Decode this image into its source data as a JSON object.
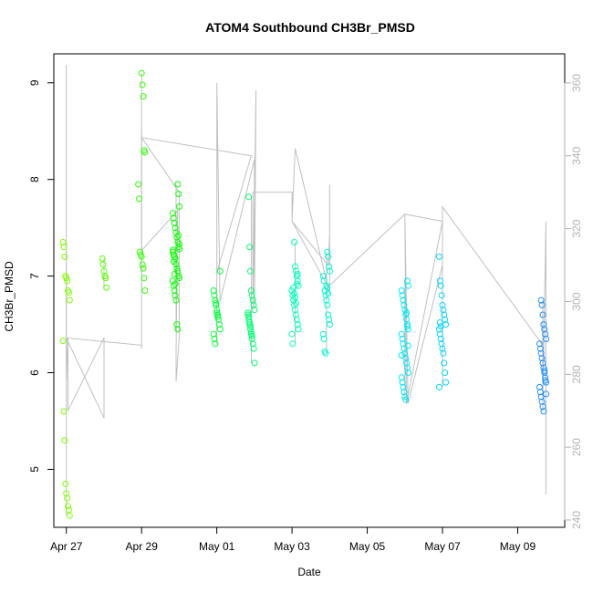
{
  "chart_data": {
    "type": "scatter",
    "title": "ATOM4 Southbound CH3Br_PMSD",
    "xlabel": "Date",
    "ylabel": "CH3Br_PMSD",
    "x_ticks": [
      "Apr 27",
      "Apr 29",
      "May 01",
      "May 03",
      "May 05",
      "May 07",
      "May 09"
    ],
    "xlim": [
      "2016-04-26T16:00",
      "2016-05-10T06:00"
    ],
    "ylim": [
      4.4,
      9.3
    ],
    "y_ticks": [
      5,
      6,
      7,
      8,
      9
    ],
    "y2lim": [
      238,
      368
    ],
    "y2_ticks": [
      240,
      260,
      280,
      300,
      320,
      340,
      360
    ],
    "y2_axis_color": "#b3b3b3",
    "line_color": "#c0c0c0",
    "point_color_scale": [
      "#7fff00",
      "#00ff00",
      "#00ffcc",
      "#00e5ff",
      "#1e90ff"
    ],
    "grid": false,
    "legend": "none",
    "clusters": [
      {
        "x": "2016-04-27T00:00",
        "values": [
          7.35,
          7.3,
          7.2,
          7.0,
          6.98,
          6.95,
          6.85,
          6.83,
          6.75,
          6.33,
          5.6,
          5.3,
          4.85,
          4.75,
          4.7,
          4.62,
          4.58,
          4.52
        ]
      },
      {
        "x": "2016-04-28T00:00",
        "values": [
          7.18,
          7.12,
          7.05,
          7.0,
          6.98,
          6.88
        ]
      },
      {
        "x": "2016-04-29T00:00",
        "values": [
          9.1,
          8.98,
          8.86,
          8.3,
          8.28,
          7.95,
          7.8,
          7.25,
          7.22,
          7.2,
          7.12,
          7.08,
          6.98,
          6.85
        ]
      },
      {
        "x": "2016-04-29T22:00",
        "values": [
          7.95,
          7.85,
          7.72,
          7.65,
          7.6,
          7.55,
          7.5,
          7.45,
          7.4,
          7.35,
          7.3,
          7.28,
          7.25,
          7.22,
          7.2,
          7.18,
          7.12,
          7.08,
          7.05,
          7.0,
          6.98,
          6.95,
          6.9,
          6.85,
          6.8,
          6.75,
          6.5,
          6.45,
          7.42,
          7.33,
          7.27,
          7.15,
          7.02,
          6.92
        ]
      },
      {
        "x": "2016-05-01T00:00",
        "values": [
          7.05,
          6.85,
          6.8,
          6.75,
          6.7,
          6.65,
          6.6,
          6.55,
          6.5,
          6.45,
          6.4,
          6.35,
          6.3,
          6.72,
          6.62,
          6.58
        ]
      },
      {
        "x": "2016-05-01T22:00",
        "values": [
          7.82,
          7.3,
          7.05,
          6.85,
          6.8,
          6.75,
          6.7,
          6.65,
          6.6,
          6.55,
          6.5,
          6.45,
          6.4,
          6.35,
          6.3,
          6.25,
          6.1,
          6.62,
          6.58,
          6.52,
          6.48,
          6.42,
          6.38
        ]
      },
      {
        "x": "2016-05-03T02:00",
        "values": [
          7.35,
          7.1,
          7.05,
          7.0,
          6.95,
          6.9,
          6.85,
          6.8,
          6.75,
          6.7,
          6.65,
          6.6,
          6.55,
          6.5,
          6.45,
          6.4,
          6.3,
          6.88,
          6.82,
          6.78,
          6.72,
          6.92,
          7.02
        ]
      },
      {
        "x": "2016-05-03T22:00",
        "values": [
          7.25,
          7.2,
          7.1,
          7.05,
          7.0,
          6.95,
          6.85,
          6.8,
          6.75,
          6.7,
          6.6,
          6.55,
          6.5,
          6.4,
          6.35,
          6.22,
          6.2,
          6.9,
          6.88,
          6.82
        ]
      },
      {
        "x": "2016-05-06T00:00",
        "values": [
          6.95,
          6.9,
          6.85,
          6.8,
          6.75,
          6.7,
          6.65,
          6.6,
          6.55,
          6.5,
          6.45,
          6.4,
          6.35,
          6.3,
          6.25,
          6.2,
          6.15,
          6.1,
          6.05,
          6.0,
          5.95,
          5.9,
          5.85,
          5.8,
          5.75,
          5.72,
          6.62,
          6.48,
          6.28,
          6.18
        ]
      },
      {
        "x": "2016-05-07T00:00",
        "values": [
          7.2,
          6.95,
          6.9,
          6.8,
          6.7,
          6.65,
          6.6,
          6.55,
          6.5,
          6.45,
          6.4,
          6.35,
          6.3,
          6.25,
          6.2,
          6.1,
          6.0,
          5.9,
          5.85,
          6.52,
          6.48
        ]
      },
      {
        "x": "2016-05-09T16:00",
        "values": [
          6.75,
          6.7,
          6.6,
          6.5,
          6.45,
          6.4,
          6.35,
          6.3,
          6.25,
          6.2,
          6.15,
          6.1,
          6.05,
          6.0,
          5.95,
          5.9,
          5.85,
          5.8,
          5.75,
          5.7,
          5.65,
          5.6,
          6.02,
          5.92,
          5.78
        ]
      }
    ],
    "secondary_series": {
      "axis": "right",
      "color": "#c0c0c0",
      "x": [
        "2016-04-27T00:00",
        "2016-04-27T00:00",
        "2016-04-27T00:00",
        "2016-04-27T01:00",
        "2016-04-27T01:00",
        "2016-04-28T00:00",
        "2016-04-28T00:00",
        "2016-04-27T00:00",
        "2016-04-29T00:00",
        "2016-04-29T00:00",
        "2016-04-29T00:00",
        "2016-04-29T00:00",
        "2016-04-29T23:00",
        "2016-04-29T22:00",
        "2016-04-29T22:00",
        "2016-04-30T00:00",
        "2016-04-30T00:00",
        "2016-04-29T00:00",
        "2016-05-01T22:00",
        "2016-05-01T00:00",
        "2016-05-01T00:00",
        "2016-05-01T02:00",
        "2016-05-02T00:00",
        "2016-05-02T00:00",
        "2016-05-02T01:00",
        "2016-05-01T23:00",
        "2016-05-01T23:00",
        "2016-05-03T00:00",
        "2016-05-03T00:00",
        "2016-05-03T02:00",
        "2016-05-04T00:00",
        "2016-05-04T00:00",
        "2016-05-04T00:00",
        "2016-05-03T23:00",
        "2016-05-03T00:00",
        "2016-05-03T23:00",
        "2016-05-06T00:00",
        "2016-05-06T00:00",
        "2016-05-06T01:00",
        "2016-05-07T00:00",
        "2016-05-06T00:00",
        "2016-05-06T02:00",
        "2016-05-07T00:00",
        "2016-05-07T00:00",
        "2016-05-09T16:00",
        "2016-05-09T16:00",
        "2016-05-09T18:00",
        "2016-05-09T18:00"
      ],
      "y": [
        311,
        365,
        278,
        290,
        270,
        290,
        268,
        290,
        288,
        287,
        346,
        314,
        325,
        286,
        278,
        290,
        330,
        345,
        340,
        308,
        360,
        300,
        339,
        298,
        358,
        298,
        330,
        330,
        322,
        342,
        302,
        332,
        318,
        310,
        322,
        304,
        324,
        324,
        272,
        322,
        324,
        272,
        310,
        326,
        288,
        272,
        322,
        247
      ]
    }
  }
}
